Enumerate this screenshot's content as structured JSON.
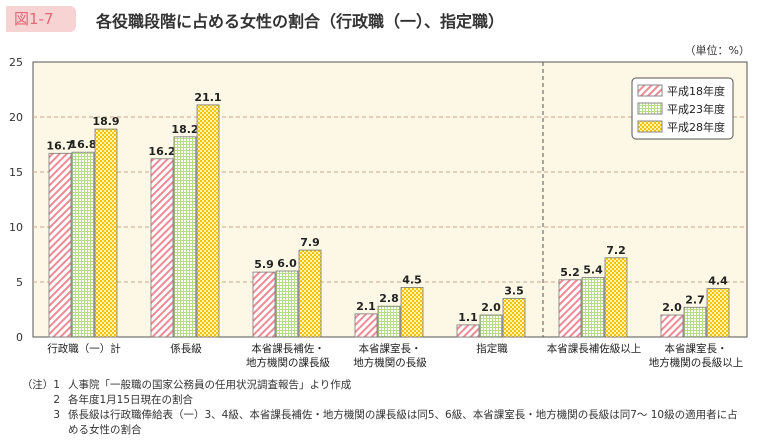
{
  "figure_number": "図1-7",
  "title": "各役職段階に占める女性の割合（行政職（一）、指定職）",
  "unit": "（単位：%）",
  "chart_data": {
    "type": "bar",
    "title": "各役職段階に占める女性の割合（行政職（一）、指定職）",
    "ylim": [
      0,
      25
    ],
    "yticks": [
      0,
      5,
      10,
      15,
      20,
      25
    ],
    "grid": true,
    "legend_position": "top-right",
    "categories": [
      "行政職（一）計",
      "係長級",
      "本省課長補佐・\n地方機関の課長級",
      "本省課室長・\n地方機関の長級",
      "指定職",
      "本省課長補佐級以上",
      "本省課室長・\n地方機関の長級以上"
    ],
    "series": [
      {
        "name": "平成18年度",
        "values": [
          16.7,
          16.2,
          5.9,
          2.1,
          1.1,
          5.2,
          2.0
        ],
        "color": "#f08a95",
        "pattern": "diagonal-hatch"
      },
      {
        "name": "平成23年度",
        "values": [
          16.8,
          18.2,
          6.0,
          2.8,
          2.0,
          5.4,
          2.7
        ],
        "color": "#a8d46f",
        "pattern": "grid"
      },
      {
        "name": "平成28年度",
        "values": [
          18.9,
          21.1,
          7.9,
          4.5,
          3.5,
          7.2,
          4.4
        ],
        "color": "#f6c400",
        "pattern": "checker"
      }
    ]
  },
  "notes": [
    {
      "key": "（注）1",
      "text": "人事院「一般職の国家公務員の任用状況調査報告」より作成"
    },
    {
      "key": "2",
      "text": "各年度1月15日現在の割合"
    },
    {
      "key": "3",
      "text": "係長級は行政職俸給表（一）3、4級、本省課長補佐・地方機関の課長級は同5、6級、本省課室長・地方機関の長級は同7～ 10級の適用者に占める女性の割合"
    }
  ]
}
